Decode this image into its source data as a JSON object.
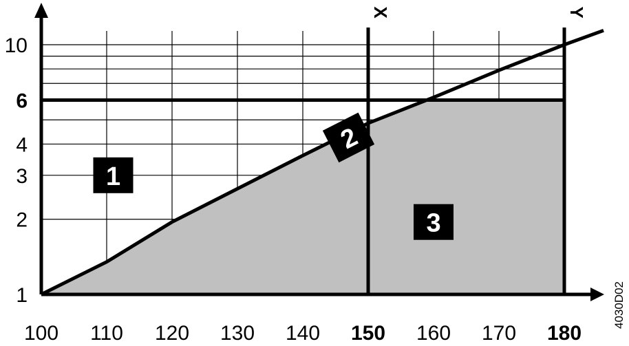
{
  "chart_data": {
    "type": "area",
    "code": "4030D02",
    "xlim": [
      100,
      180
    ],
    "ylim": [
      1,
      10
    ],
    "y_scale": "log",
    "grid": true,
    "x_ticks": [
      {
        "value": 100,
        "label": "100",
        "bold": false
      },
      {
        "value": 110,
        "label": "110",
        "bold": false
      },
      {
        "value": 120,
        "label": "120",
        "bold": false
      },
      {
        "value": 130,
        "label": "130",
        "bold": false
      },
      {
        "value": 140,
        "label": "140",
        "bold": false
      },
      {
        "value": 150,
        "label": "150",
        "bold": true
      },
      {
        "value": 160,
        "label": "160",
        "bold": false
      },
      {
        "value": 170,
        "label": "170",
        "bold": false
      },
      {
        "value": 180,
        "label": "180",
        "bold": true
      }
    ],
    "y_ticks": [
      {
        "value": 1,
        "label": "1",
        "bold": false
      },
      {
        "value": 2,
        "label": "2",
        "bold": false
      },
      {
        "value": 3,
        "label": "3",
        "bold": false
      },
      {
        "value": 4,
        "label": "4",
        "bold": false
      },
      {
        "value": 6,
        "label": "6",
        "bold": true
      },
      {
        "value": 10,
        "label": "10",
        "bold": false
      }
    ],
    "y_gridlines": [
      1,
      2,
      3,
      4,
      5,
      6,
      7,
      8,
      9,
      10
    ],
    "x_gridlines": [
      100,
      110,
      120,
      130,
      140,
      150,
      160,
      170,
      180
    ],
    "curve": {
      "x": [
        100,
        110,
        120,
        130,
        140,
        150,
        160,
        170,
        180,
        186
      ],
      "y": [
        1,
        1.35,
        1.95,
        2.65,
        3.6,
        4.85,
        6.15,
        7.9,
        10,
        11.4
      ]
    },
    "limit_line_y": 6,
    "limit_lines_x": [
      {
        "label": "X",
        "value": 150
      },
      {
        "label": "Y",
        "value": 180
      }
    ],
    "shaded_region_color": "#c0c0c0",
    "regions": [
      {
        "label": "1",
        "x": 111,
        "y": 3.0,
        "rotate": 0
      },
      {
        "label": "2",
        "x": 147,
        "y": 4.25,
        "rotate": -27
      },
      {
        "label": "3",
        "x": 160,
        "y": 1.95,
        "rotate": 0
      }
    ]
  }
}
